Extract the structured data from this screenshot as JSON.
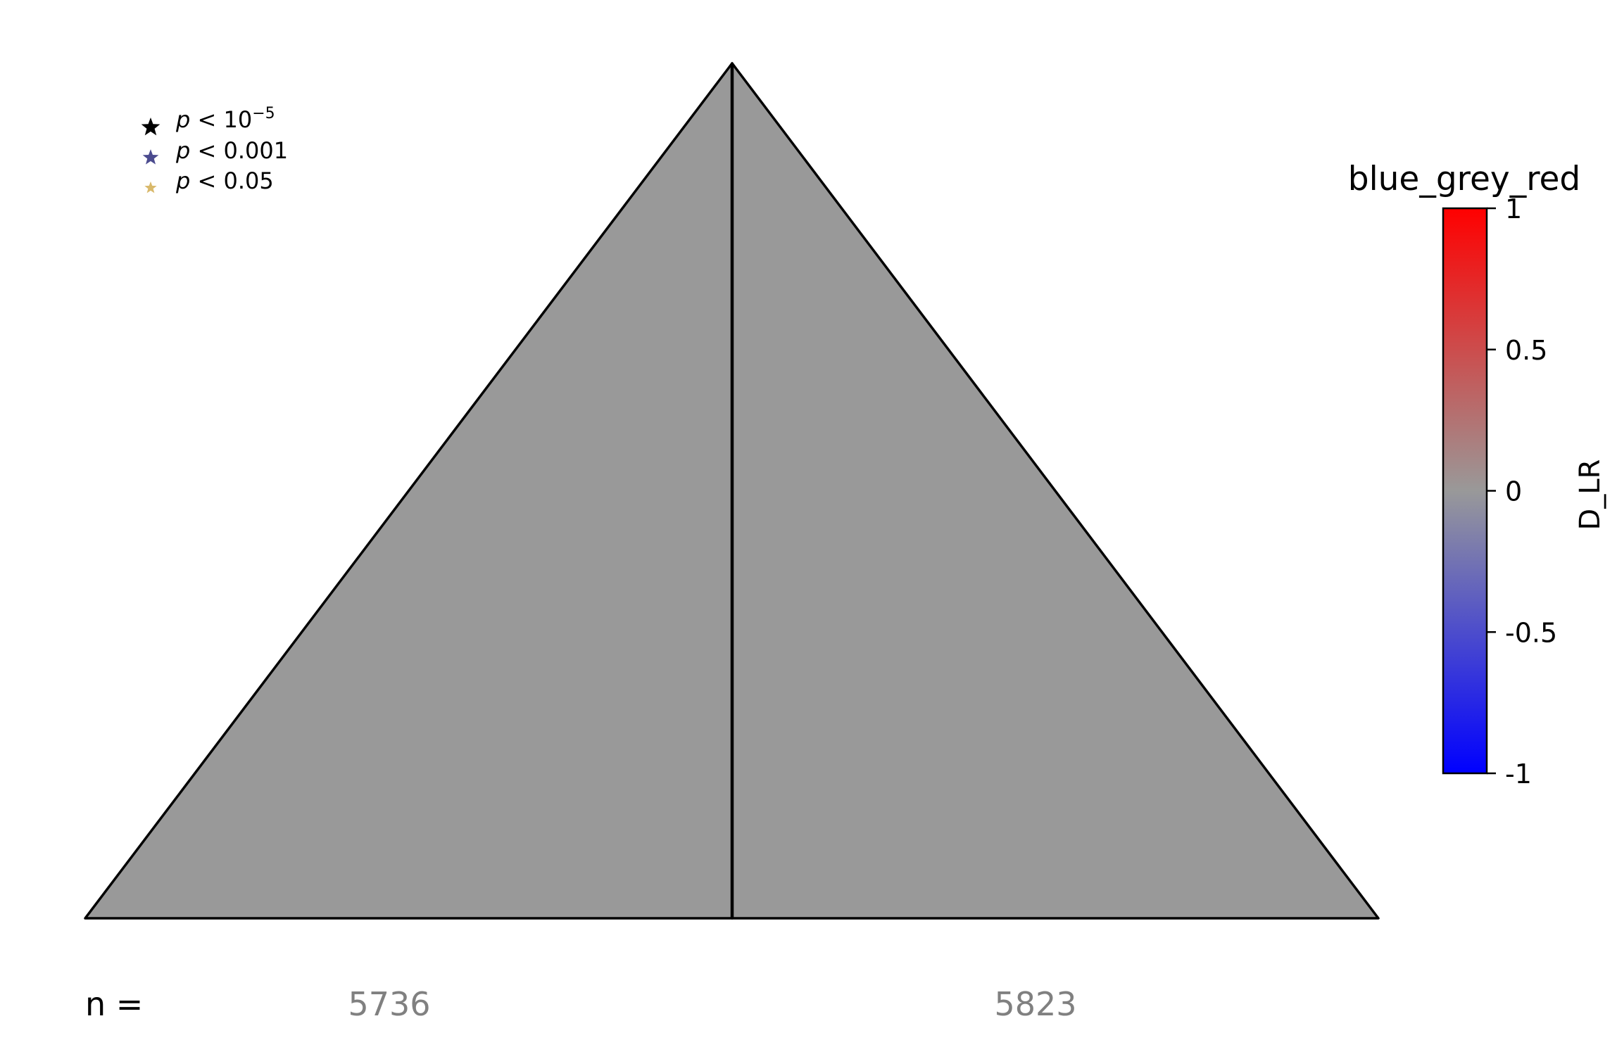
{
  "chart_data": {
    "type": "triangle-heatmap",
    "colorbar": {
      "title": "blue_grey_red",
      "label": "D_LR",
      "range": [
        -1,
        1
      ],
      "ticks": [
        1,
        0.5,
        0,
        -0.5,
        -1
      ],
      "tick_labels": [
        "1",
        "0.5",
        "0",
        "-0.5",
        "-1"
      ],
      "colors": {
        "max": "#ff0000",
        "mid": "#999999",
        "min": "#0000ff"
      }
    },
    "legend": {
      "placement": "top-left",
      "entries": [
        {
          "p": "p",
          "op": " < ",
          "text": "10",
          "sup": "−5",
          "color": "#000000",
          "size": 1.0
        },
        {
          "p": "p",
          "op": " < ",
          "text": "0.001",
          "sup": "",
          "color": "#4b4b8f",
          "size": 0.85
        },
        {
          "p": "p",
          "op": " < ",
          "text": "0.05",
          "sup": "",
          "color": "#d9b96b",
          "size": 0.65
        }
      ]
    },
    "regions": [
      {
        "name": "left",
        "value": 0,
        "fill": "#999999",
        "n": 5736
      },
      {
        "name": "right",
        "value": 0,
        "fill": "#999999",
        "n": 5823
      }
    ],
    "n_label": "n =",
    "n_values": [
      "5736",
      "5823"
    ],
    "n_color": "#808080"
  }
}
